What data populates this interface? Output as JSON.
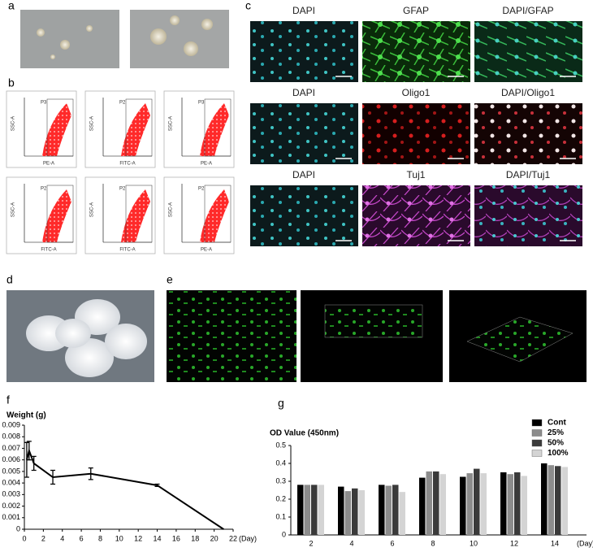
{
  "panel_labels": [
    "a",
    "b",
    "c",
    "d",
    "e",
    "f",
    "g"
  ],
  "stains": [
    [
      "DAPI",
      "GFAP",
      "DAPI/GFAP"
    ],
    [
      "DAPI",
      "Oligo1",
      "DAPI/Oligo1"
    ],
    [
      "DAPI",
      "Tuj1",
      "DAPI/Tuj1"
    ]
  ],
  "flow_plots": [
    {
      "gate": "P3",
      "x_label": "PE-A",
      "y_label": "SSC-A"
    },
    {
      "gate": "P2",
      "x_label": "FITC-A",
      "y_label": "SSC-A"
    },
    {
      "gate": "P3",
      "x_label": "PE-A",
      "y_label": "SSC-A"
    },
    {
      "gate": "P2",
      "x_label": "FITC-A",
      "y_label": "SSC-A"
    },
    {
      "gate": "P2",
      "x_label": "FITC-A",
      "y_label": "SSC-A"
    },
    {
      "gate": "P2",
      "x_label": "PE-A",
      "y_label": "SSC-A"
    }
  ],
  "chart_data": [
    {
      "type": "line",
      "ylabel": "Weight (g)",
      "xlabel": "(Day)",
      "color": "#000000",
      "x": [
        0.25,
        0.5,
        1,
        3,
        7,
        14,
        21
      ],
      "values": [
        0.006,
        0.0068,
        0.0057,
        0.0045,
        0.0048,
        0.0038,
        0
      ],
      "errors": [
        0.0015,
        0.0008,
        0.0006,
        0.0006,
        0.0005,
        0.0001,
        null
      ],
      "xlim": [
        0,
        22
      ],
      "xticks": [
        0,
        2,
        4,
        6,
        8,
        10,
        12,
        14,
        16,
        18,
        20,
        22
      ],
      "ylim": [
        0,
        0.009
      ],
      "yticks": [
        0,
        0.001,
        0.002,
        0.003,
        0.004,
        0.005,
        0.006,
        0.007,
        0.008,
        0.009
      ]
    },
    {
      "type": "bar",
      "ylabel": "OD Value (450nm)",
      "xlabel": "(Day)",
      "legend": "top-right",
      "categories": [
        "2",
        "4",
        "6",
        "8",
        "10",
        "12",
        "14"
      ],
      "series": [
        {
          "name": "Cont",
          "color": "#000000",
          "values": [
            0.28,
            0.27,
            0.28,
            0.32,
            0.325,
            0.35,
            0.4
          ]
        },
        {
          "name": "25%",
          "color": "#8c8c8c",
          "values": [
            0.28,
            0.245,
            0.275,
            0.355,
            0.345,
            0.34,
            0.39
          ]
        },
        {
          "name": "50%",
          "color": "#3a3a3a",
          "values": [
            0.28,
            0.26,
            0.28,
            0.355,
            0.37,
            0.35,
            0.385
          ]
        },
        {
          "name": "100%",
          "color": "#d4d4d4",
          "values": [
            0.28,
            0.25,
            0.24,
            0.34,
            0.345,
            0.33,
            0.38
          ]
        }
      ],
      "ylim": [
        0,
        0.5
      ],
      "yticks": [
        0,
        0.1,
        0.2,
        0.3,
        0.4,
        0.5
      ]
    }
  ]
}
